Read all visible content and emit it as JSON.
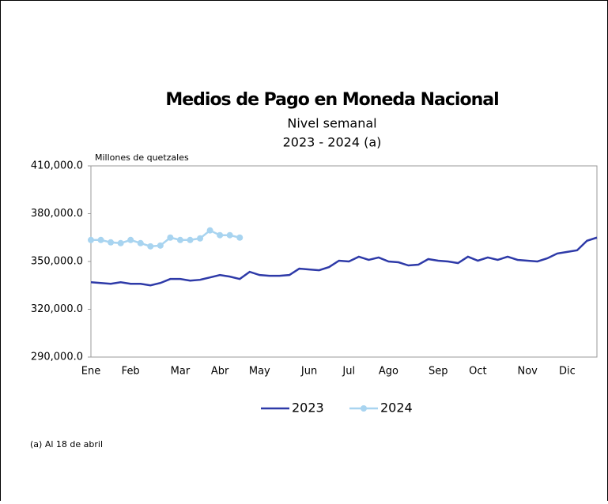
{
  "chart_data": {
    "type": "line",
    "title": "Medios de Pago en Moneda Nacional",
    "subtitle": [
      "Nivel semanal",
      "2023 - 2024 (a)"
    ],
    "y_label": "Millones de quetzales",
    "note": "(a) Al 18 de abril",
    "categories": [
      "Ene",
      null,
      null,
      null,
      "Feb",
      null,
      null,
      null,
      null,
      "Mar",
      null,
      null,
      null,
      "Abr",
      null,
      null,
      null,
      "May",
      null,
      null,
      null,
      null,
      "Jun",
      null,
      null,
      null,
      "Jul",
      null,
      null,
      null,
      "Ago",
      null,
      null,
      null,
      null,
      "Sep",
      null,
      null,
      null,
      "Oct",
      null,
      null,
      null,
      null,
      "Nov",
      null,
      null,
      null,
      "Dic",
      null,
      null,
      null
    ],
    "series": [
      {
        "name": "2023",
        "color": "#2e3aa8",
        "marker": false,
        "values": [
          337000,
          336500,
          336000,
          337000,
          336000,
          336000,
          335000,
          336500,
          339000,
          339000,
          338000,
          338500,
          340000,
          341500,
          340500,
          339000,
          343500,
          341500,
          341000,
          341000,
          341500,
          345500,
          345000,
          344500,
          346500,
          350500,
          350000,
          353000,
          351000,
          352500,
          350000,
          349500,
          347500,
          348000,
          351500,
          350500,
          350000,
          349000,
          353000,
          350500,
          352500,
          351000,
          353000,
          351000,
          350500,
          350000,
          352000,
          355000,
          356000,
          357000,
          363000,
          365000
        ]
      },
      {
        "name": "2024",
        "color": "#a8d4f0",
        "marker": true,
        "values": [
          363500,
          363500,
          362000,
          361500,
          363500,
          361500,
          359500,
          360000,
          365000,
          363500,
          363500,
          364500,
          369500,
          366500,
          366500,
          365000,
          null,
          null,
          null,
          null,
          null,
          null,
          null,
          null,
          null,
          null,
          null,
          null,
          null,
          null,
          null,
          null,
          null,
          null,
          null,
          null,
          null,
          null,
          null,
          null,
          null,
          null,
          null,
          null,
          null,
          null,
          null,
          null,
          null,
          null,
          null,
          null
        ]
      }
    ],
    "ylim": [
      290000,
      410000
    ],
    "yticks": [
      {
        "value": 290000,
        "label": "290,000.0"
      },
      {
        "value": 320000,
        "label": "320,000.0"
      },
      {
        "value": 350000,
        "label": "350,000.0"
      },
      {
        "value": 380000,
        "label": "380,000.0"
      },
      {
        "value": 410000,
        "label": "410,000.0"
      }
    ],
    "grid": false,
    "legend": "bottom"
  }
}
